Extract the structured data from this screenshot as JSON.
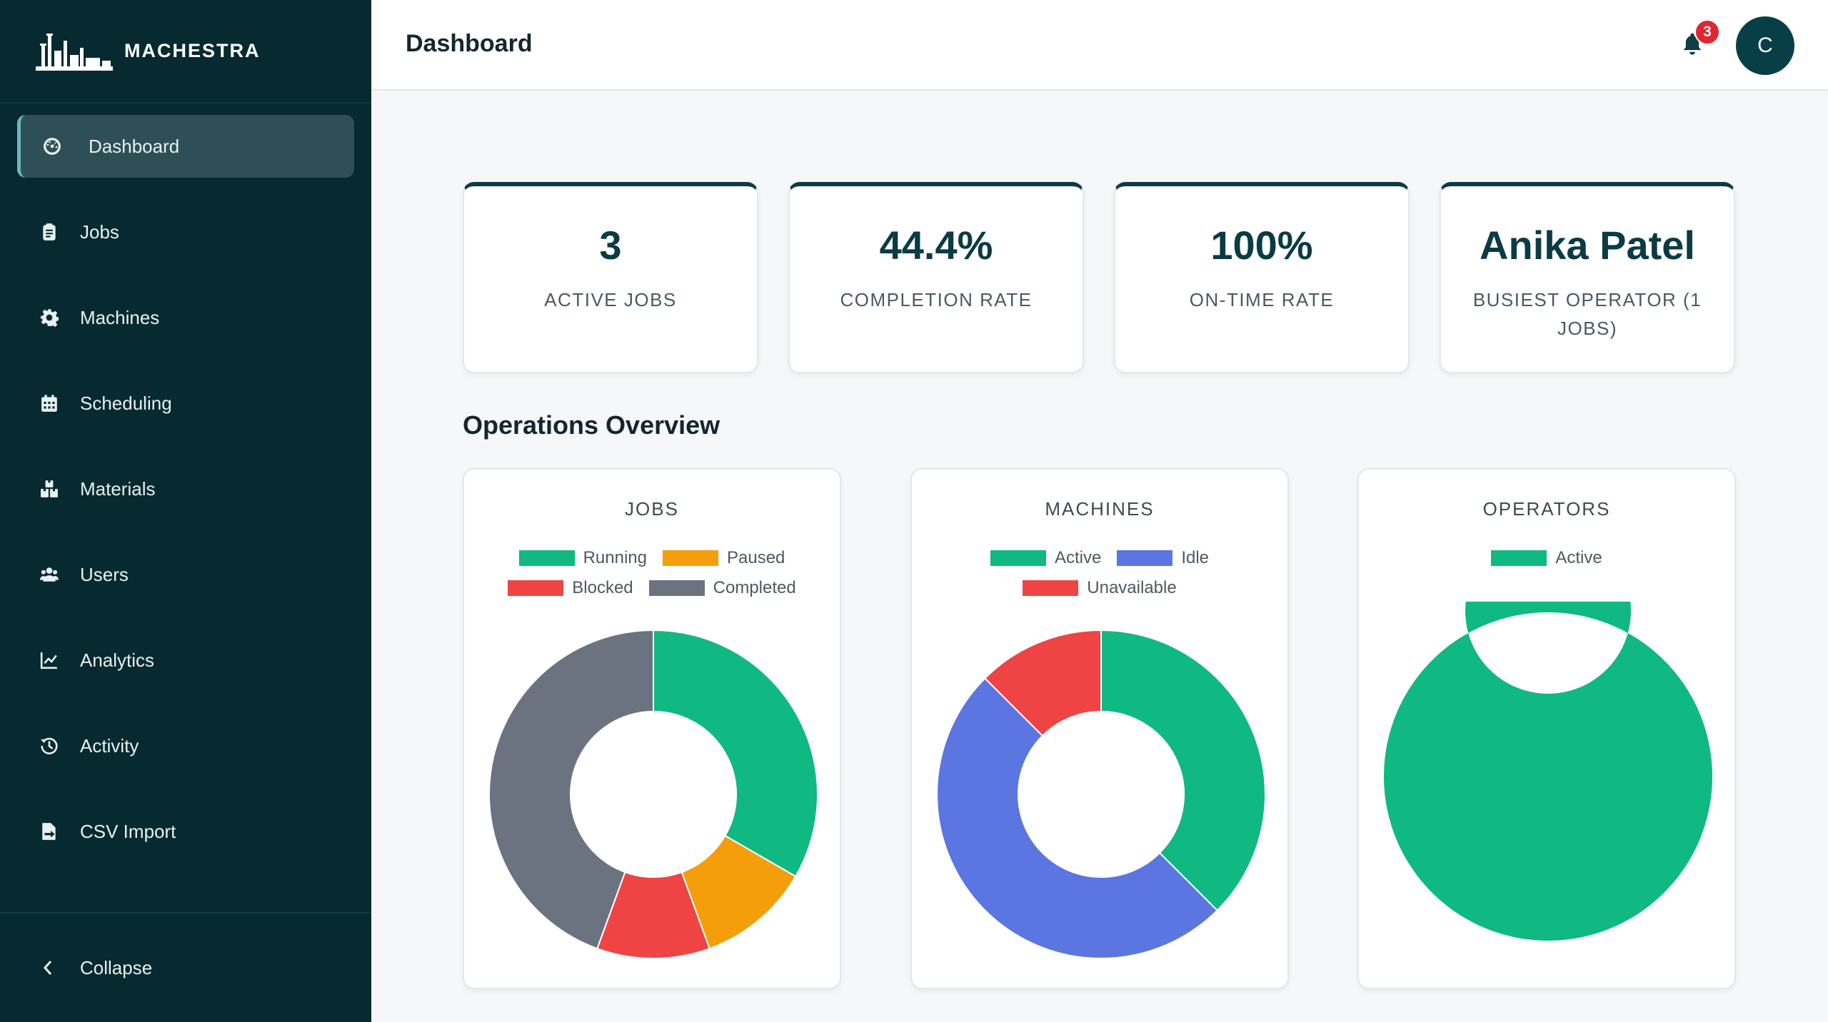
{
  "app": {
    "name": "MACHESTRA"
  },
  "sidebar": {
    "items": [
      {
        "label": "Dashboard",
        "icon": "dashboard-gauge-icon",
        "active": true
      },
      {
        "label": "Jobs",
        "icon": "clipboard-icon"
      },
      {
        "label": "Machines",
        "icon": "gear-icon"
      },
      {
        "label": "Scheduling",
        "icon": "calendar-icon"
      },
      {
        "label": "Materials",
        "icon": "boxes-icon"
      },
      {
        "label": "Users",
        "icon": "users-icon"
      },
      {
        "label": "Analytics",
        "icon": "line-chart-icon"
      },
      {
        "label": "Activity",
        "icon": "history-icon"
      },
      {
        "label": "CSV Import",
        "icon": "file-import-icon"
      }
    ],
    "collapse_label": "Collapse"
  },
  "header": {
    "title": "Dashboard",
    "notification_count": "3",
    "avatar_initial": "C"
  },
  "kpis": [
    {
      "value": "3",
      "label": "ACTIVE JOBS"
    },
    {
      "value": "44.4%",
      "label": "COMPLETION RATE"
    },
    {
      "value": "100%",
      "label": "ON-TIME RATE"
    },
    {
      "value": "Anika Patel",
      "label": "BUSIEST OPERATOR (1 JOBS)"
    }
  ],
  "section_title": "Operations Overview",
  "colors": {
    "green": "#10b981",
    "orange": "#f59e0b",
    "red": "#ef4444",
    "gray": "#6b7280",
    "blue": "#5b76e0",
    "sidebar": "#072a31",
    "accent": "#0b3b44"
  },
  "chart_data": [
    {
      "type": "pie",
      "title": "JOBS",
      "donut": true,
      "categories": [
        "Running",
        "Paused",
        "Blocked",
        "Completed"
      ],
      "values": [
        3,
        1,
        1,
        4
      ],
      "colors": [
        "#10b981",
        "#f59e0b",
        "#ef4444",
        "#6b7280"
      ],
      "legend": "top"
    },
    {
      "type": "pie",
      "title": "MACHINES",
      "donut": true,
      "categories": [
        "Active",
        "Idle",
        "Unavailable"
      ],
      "values": [
        3,
        4,
        1
      ],
      "colors": [
        "#10b981",
        "#5b76e0",
        "#ef4444"
      ],
      "legend": "top"
    },
    {
      "type": "pie",
      "title": "OPERATORS",
      "donut": true,
      "categories": [
        "Active"
      ],
      "values": [
        1
      ],
      "colors": [
        "#10b981"
      ],
      "legend": "top"
    }
  ]
}
